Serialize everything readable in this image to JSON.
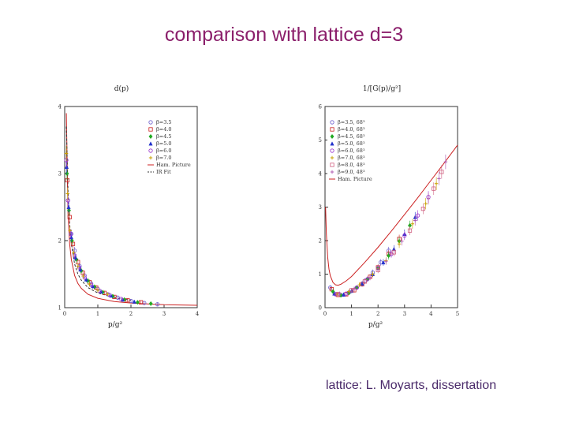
{
  "slide": {
    "title": "comparison with lattice d=3",
    "credit": "lattice: L. Moyarts, dissertation"
  },
  "chart_data": [
    {
      "type": "scatter",
      "ylabel": "d(p)",
      "xlabel": "p/g²",
      "xlim": [
        0,
        4
      ],
      "ylim": [
        1,
        4
      ],
      "xticks": [
        0,
        1,
        2,
        3,
        4
      ],
      "yticks": [
        1,
        2,
        3,
        4
      ],
      "legend_position": "top-right",
      "series": [
        {
          "name": "β=3.5",
          "color": "#6a5acd",
          "marker": "circle",
          "x": [
            0.1,
            0.2,
            0.3,
            0.45,
            0.6,
            0.8,
            1.0,
            1.3,
            1.6,
            2.0,
            2.4,
            2.8
          ],
          "y": [
            2.6,
            2.1,
            1.85,
            1.62,
            1.48,
            1.36,
            1.28,
            1.2,
            1.15,
            1.1,
            1.07,
            1.05
          ]
        },
        {
          "name": "β=4.0",
          "color": "#cc2222",
          "marker": "square",
          "x": [
            0.08,
            0.15,
            0.25,
            0.4,
            0.55,
            0.75,
            0.95,
            1.2,
            1.5,
            1.9,
            2.3
          ],
          "y": [
            2.9,
            2.35,
            1.95,
            1.68,
            1.52,
            1.38,
            1.3,
            1.22,
            1.16,
            1.11,
            1.08
          ]
        },
        {
          "name": "β=4.5",
          "color": "#22aa22",
          "marker": "diamond",
          "x": [
            0.07,
            0.13,
            0.22,
            0.35,
            0.5,
            0.7,
            0.9,
            1.15,
            1.45,
            1.8,
            2.2,
            2.6
          ],
          "y": [
            3.0,
            2.45,
            2.0,
            1.72,
            1.55,
            1.4,
            1.31,
            1.23,
            1.17,
            1.12,
            1.08,
            1.06
          ]
        },
        {
          "name": "β=5.0",
          "color": "#2233cc",
          "marker": "triangle",
          "x": [
            0.06,
            0.12,
            0.2,
            0.32,
            0.47,
            0.65,
            0.85,
            1.1,
            1.4,
            1.75,
            2.1
          ],
          "y": [
            3.1,
            2.5,
            2.05,
            1.75,
            1.57,
            1.42,
            1.32,
            1.24,
            1.18,
            1.12,
            1.09
          ]
        },
        {
          "name": "β=6.0",
          "color": "#9932cc",
          "marker": "circle",
          "x": [
            0.05,
            0.1,
            0.18,
            0.3,
            0.44,
            0.6,
            0.8,
            1.05,
            1.35,
            1.7
          ],
          "y": [
            3.2,
            2.6,
            2.1,
            1.78,
            1.6,
            1.45,
            1.34,
            1.25,
            1.19,
            1.13
          ]
        },
        {
          "name": "β=7.0",
          "color": "#c8a000",
          "marker": "plus",
          "x": [
            0.05,
            0.09,
            0.16,
            0.27,
            0.4,
            0.56,
            0.75,
            1.0,
            1.3
          ],
          "y": [
            3.3,
            2.7,
            2.15,
            1.82,
            1.62,
            1.47,
            1.35,
            1.26,
            1.2
          ]
        }
      ],
      "lines": [
        {
          "name": "Ham. Picture",
          "color": "#cc2222",
          "dash": "solid",
          "x": [
            0.05,
            0.1,
            0.15,
            0.2,
            0.3,
            0.4,
            0.5,
            0.7,
            1.0,
            1.5,
            2.0,
            2.5,
            3.0,
            3.5,
            4.0
          ],
          "y": [
            3.9,
            2.4,
            1.95,
            1.72,
            1.48,
            1.36,
            1.29,
            1.2,
            1.14,
            1.09,
            1.07,
            1.055,
            1.045,
            1.04,
            1.035
          ]
        },
        {
          "name": "IR Fit",
          "color": "#333333",
          "dash": "dashed",
          "x": [
            0.05,
            0.1,
            0.15,
            0.2,
            0.3,
            0.4,
            0.5,
            0.7,
            1.0,
            1.5,
            2.0
          ],
          "y": [
            3.7,
            2.75,
            2.25,
            1.95,
            1.65,
            1.5,
            1.41,
            1.3,
            1.22,
            1.15,
            1.11
          ]
        }
      ]
    },
    {
      "type": "scatter",
      "ylabel": "1/[G(p)/g²]",
      "xlabel": "p/g²",
      "xlim": [
        0,
        5
      ],
      "ylim": [
        0,
        6
      ],
      "xticks": [
        0,
        1,
        2,
        3,
        4,
        5
      ],
      "yticks": [
        0,
        1,
        2,
        3,
        4,
        5,
        6
      ],
      "legend_position": "top-left",
      "series": [
        {
          "name": "β=3.5, 68³",
          "color": "#6a5acd",
          "marker": "circle",
          "x": [
            0.2,
            0.4,
            0.6,
            0.9,
            1.2,
            1.5,
            1.8,
            2.1,
            2.4
          ],
          "y": [
            0.6,
            0.4,
            0.38,
            0.45,
            0.6,
            0.8,
            1.05,
            1.35,
            1.7
          ]
        },
        {
          "name": "β=4.0, 68³",
          "color": "#cc2222",
          "marker": "square",
          "x": [
            0.25,
            0.5,
            0.8,
            1.1,
            1.4,
            1.7,
            2.0,
            2.4,
            2.8
          ],
          "y": [
            0.55,
            0.38,
            0.4,
            0.52,
            0.7,
            0.92,
            1.2,
            1.6,
            2.05
          ]
        },
        {
          "name": "β=4.5, 68³",
          "color": "#22aa22",
          "marker": "diamond",
          "x": [
            0.3,
            0.6,
            0.9,
            1.2,
            1.6,
            2.0,
            2.4,
            2.8,
            3.2
          ],
          "y": [
            0.48,
            0.37,
            0.44,
            0.6,
            0.85,
            1.18,
            1.55,
            1.98,
            2.45
          ]
        },
        {
          "name": "β=5.0, 68³",
          "color": "#2233cc",
          "marker": "triangle",
          "x": [
            0.35,
            0.7,
            1.0,
            1.4,
            1.8,
            2.2,
            2.6,
            3.0,
            3.4
          ],
          "y": [
            0.42,
            0.39,
            0.5,
            0.72,
            1.0,
            1.35,
            1.75,
            2.2,
            2.7
          ]
        },
        {
          "name": "β=6.0, 68³",
          "color": "#9932cc",
          "marker": "circle",
          "x": [
            0.4,
            0.8,
            1.2,
            1.6,
            2.0,
            2.5,
            3.0,
            3.5,
            3.9
          ],
          "y": [
            0.4,
            0.42,
            0.6,
            0.85,
            1.18,
            1.6,
            2.15,
            2.75,
            3.3
          ]
        },
        {
          "name": "β=7.0, 68³",
          "color": "#c8a000",
          "marker": "plus",
          "x": [
            0.45,
            0.9,
            1.3,
            1.8,
            2.3,
            2.8,
            3.3,
            3.8,
            4.2
          ],
          "y": [
            0.4,
            0.48,
            0.68,
            1.0,
            1.4,
            1.9,
            2.5,
            3.1,
            3.7
          ]
        },
        {
          "name": "β=8.0, 48³",
          "color": "#d06080",
          "marker": "square",
          "x": [
            0.5,
            1.0,
            1.5,
            2.0,
            2.6,
            3.2,
            3.7,
            4.1,
            4.4
          ],
          "y": [
            0.41,
            0.52,
            0.78,
            1.12,
            1.65,
            2.3,
            2.95,
            3.55,
            4.05
          ]
        },
        {
          "name": "β=9.0, 48³",
          "color": "#b05ab0",
          "marker": "plus",
          "x": [
            0.55,
            1.1,
            1.7,
            2.3,
            2.9,
            3.4,
            3.9,
            4.3,
            4.55
          ],
          "y": [
            0.42,
            0.56,
            0.9,
            1.38,
            1.98,
            2.6,
            3.25,
            3.85,
            4.35
          ]
        }
      ],
      "lines": [
        {
          "name": "Ham. Picture",
          "color": "#cc2222",
          "dash": "solid",
          "x": [
            0.02,
            0.05,
            0.1,
            0.15,
            0.2,
            0.3,
            0.4,
            0.5,
            0.6,
            0.8,
            1.0,
            1.5,
            2.0,
            2.5,
            3.0,
            3.5,
            4.0,
            4.5,
            5.0
          ],
          "y": [
            3.0,
            2.2,
            1.5,
            1.15,
            0.95,
            0.75,
            0.68,
            0.67,
            0.7,
            0.8,
            0.93,
            1.35,
            1.8,
            2.28,
            2.78,
            3.28,
            3.8,
            4.32,
            4.85
          ]
        }
      ]
    }
  ]
}
